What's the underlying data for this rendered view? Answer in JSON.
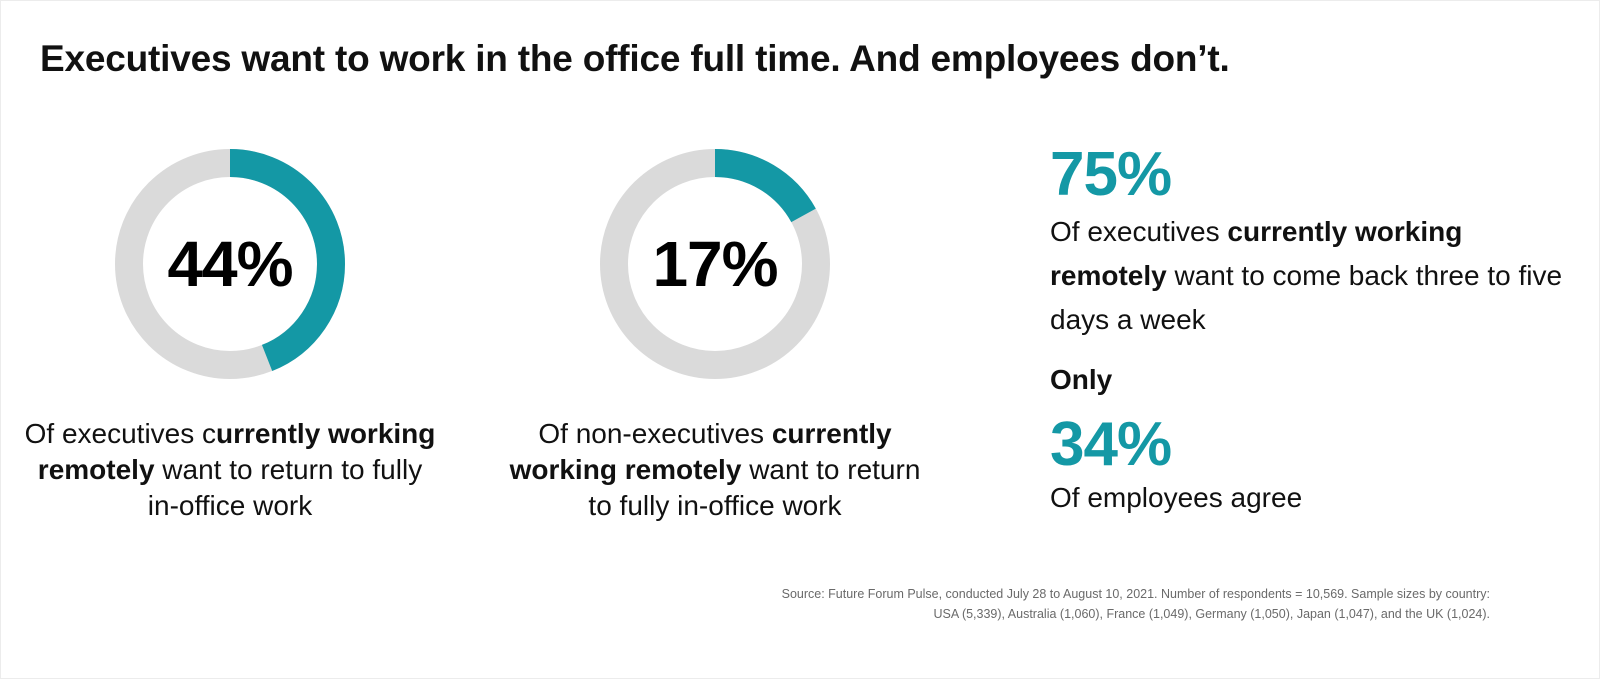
{
  "title": "Executives want to work in the office full time. And employees don’t.",
  "colors": {
    "accent": "#1498a5",
    "track": "#dadada",
    "text": "#111111",
    "source_text": "#6a6a6a"
  },
  "chart_data": [
    {
      "type": "pie",
      "variant": "donut",
      "value": 44,
      "label": "44%",
      "caption": {
        "pre": "Of executives c",
        "bold": "urrently working remotely",
        "post": " want to return to fully in-office work"
      }
    },
    {
      "type": "pie",
      "variant": "donut",
      "value": 17,
      "label": "17%",
      "caption": {
        "pre": "Of non-executives ",
        "bold": "currently working remotely",
        "post": " want to return to fully in-office work"
      }
    }
  ],
  "stats": {
    "stat1": {
      "value": "75%",
      "pre": "Of executives ",
      "bold": "currently working remotely",
      "post": " want to come back three to five days a week"
    },
    "only": "Only",
    "stat2": {
      "value": "34%",
      "text": "Of employees agree"
    }
  },
  "source": {
    "line1": "Source: Future Forum Pulse, conducted July 28 to August 10, 2021. Number of respondents = 10,569. Sample sizes by country:",
    "line2": "USA (5,339), Australia (1,060), France (1,049), Germany (1,050), Japan (1,047), and the UK (1,024)."
  }
}
